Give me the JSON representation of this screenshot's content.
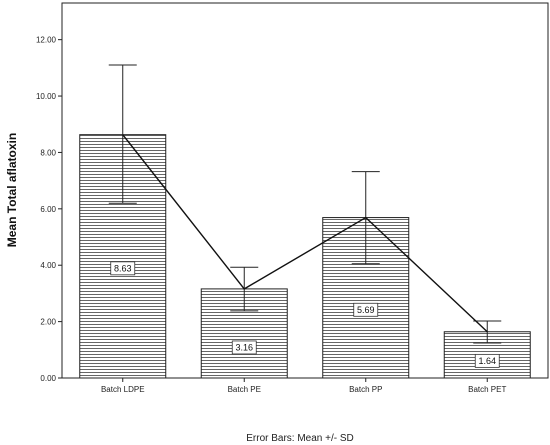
{
  "chart_data": {
    "type": "bar",
    "categories": [
      "Batch LDPE",
      "Batch PE",
      "Batch PP",
      "Batch PET"
    ],
    "values": [
      8.63,
      3.16,
      5.69,
      1.64
    ],
    "data_labels": [
      "8.63",
      "3.16",
      "5.69",
      "1.64"
    ],
    "error_low": [
      6.2,
      2.38,
      4.05,
      1.24
    ],
    "error_high": [
      11.1,
      3.93,
      7.32,
      2.02
    ],
    "ylabel": "Mean Total aflatoxin",
    "xlabel": "",
    "ylim": [
      0,
      13.3
    ],
    "yticks": [
      0,
      2,
      4,
      6,
      8,
      10,
      12
    ],
    "ytick_labels": [
      "0.00",
      "2.00",
      "4.00",
      "6.00",
      "8.00",
      "10.00",
      "12.00"
    ],
    "line_connects_means": true,
    "bar_fill": "horizontal-stripes",
    "grid": false,
    "footnote": "Error Bars: Mean +/-  SD"
  }
}
